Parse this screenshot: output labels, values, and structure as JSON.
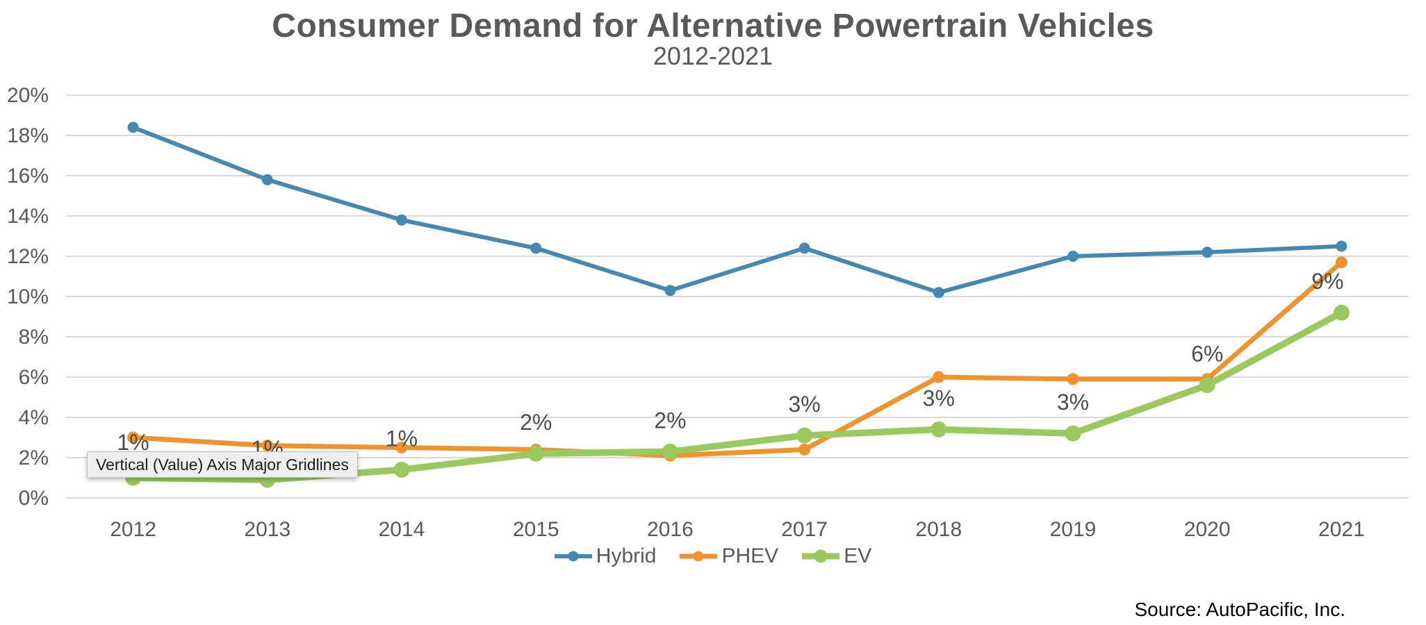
{
  "chart_data": {
    "type": "line",
    "title": "Consumer Demand for Alternative Powertrain Vehicles",
    "subtitle": "2012-2021",
    "categories": [
      "2012",
      "2013",
      "2014",
      "2015",
      "2016",
      "2017",
      "2018",
      "2019",
      "2020",
      "2021"
    ],
    "series": [
      {
        "name": "Hybrid",
        "color": "#4588B2",
        "values": [
          18.4,
          15.8,
          13.8,
          12.4,
          10.3,
          12.4,
          10.2,
          12.0,
          12.2,
          12.5
        ]
      },
      {
        "name": "PHEV",
        "color": "#F0932D",
        "values": [
          3.0,
          2.6,
          2.5,
          2.4,
          2.1,
          2.4,
          6.0,
          5.9,
          5.9,
          11.7
        ]
      },
      {
        "name": "EV",
        "color": "#9ACA5E",
        "values": [
          1.0,
          0.9,
          1.4,
          2.2,
          2.3,
          3.1,
          3.4,
          3.2,
          5.6,
          9.2
        ],
        "data_labels": [
          "1%",
          "1%",
          "1%",
          "2%",
          "2%",
          "3%",
          "3%",
          "3%",
          "6%",
          "9%"
        ]
      }
    ],
    "y_axis": {
      "min": 0,
      "max": 20,
      "step": 2,
      "tick_labels": [
        "0%",
        "2%",
        "4%",
        "6%",
        "8%",
        "10%",
        "12%",
        "14%",
        "16%",
        "18%",
        "20%"
      ]
    },
    "x_axis": {
      "tick_labels": [
        "2012",
        "2013",
        "2014",
        "2015",
        "2016",
        "2017",
        "2018",
        "2019",
        "2020",
        "2021"
      ]
    },
    "grid": true,
    "legend_position": "bottom"
  },
  "tooltip": {
    "text": "Vertical (Value) Axis Major Gridlines"
  },
  "source": {
    "text": "Source: AutoPacific, Inc."
  },
  "colors": {
    "title_text": "#595959",
    "axis_text": "#595959",
    "gridline": "#D9D9D9",
    "data_label_text": "#4D4D4D"
  }
}
